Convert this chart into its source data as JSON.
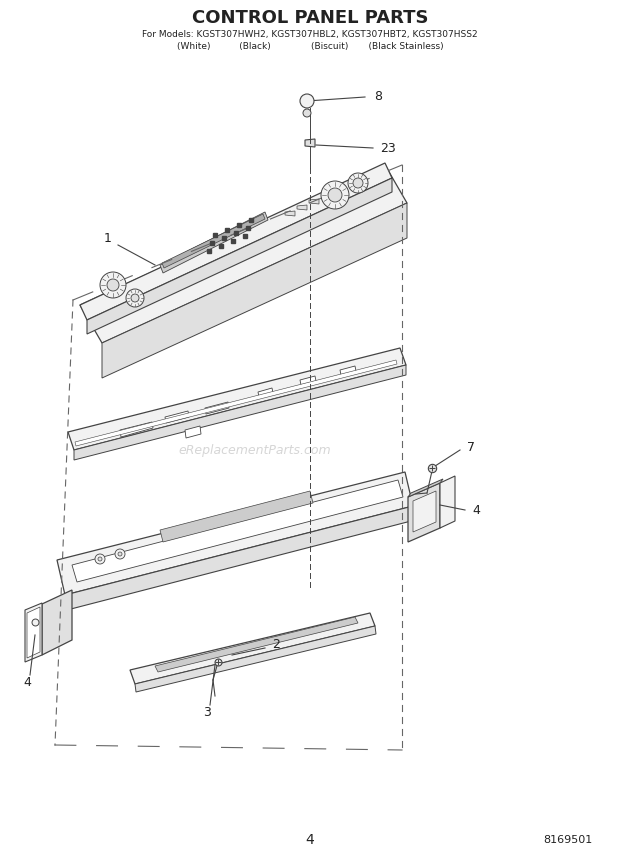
{
  "title": "CONTROL PANEL PARTS",
  "subtitle_line1": "For Models: KGST307HWH2, KGST307HBL2, KGST307HBT2, KGST307HSS2",
  "subtitle_line2": "(White)          (Black)              (Biscuit)       (Black Stainless)",
  "page_number": "4",
  "doc_number": "8169501",
  "bg_color": "#ffffff",
  "lc": "#444444",
  "dc": "#666666",
  "tc": "#222222",
  "watermark": "eReplacementParts.com"
}
